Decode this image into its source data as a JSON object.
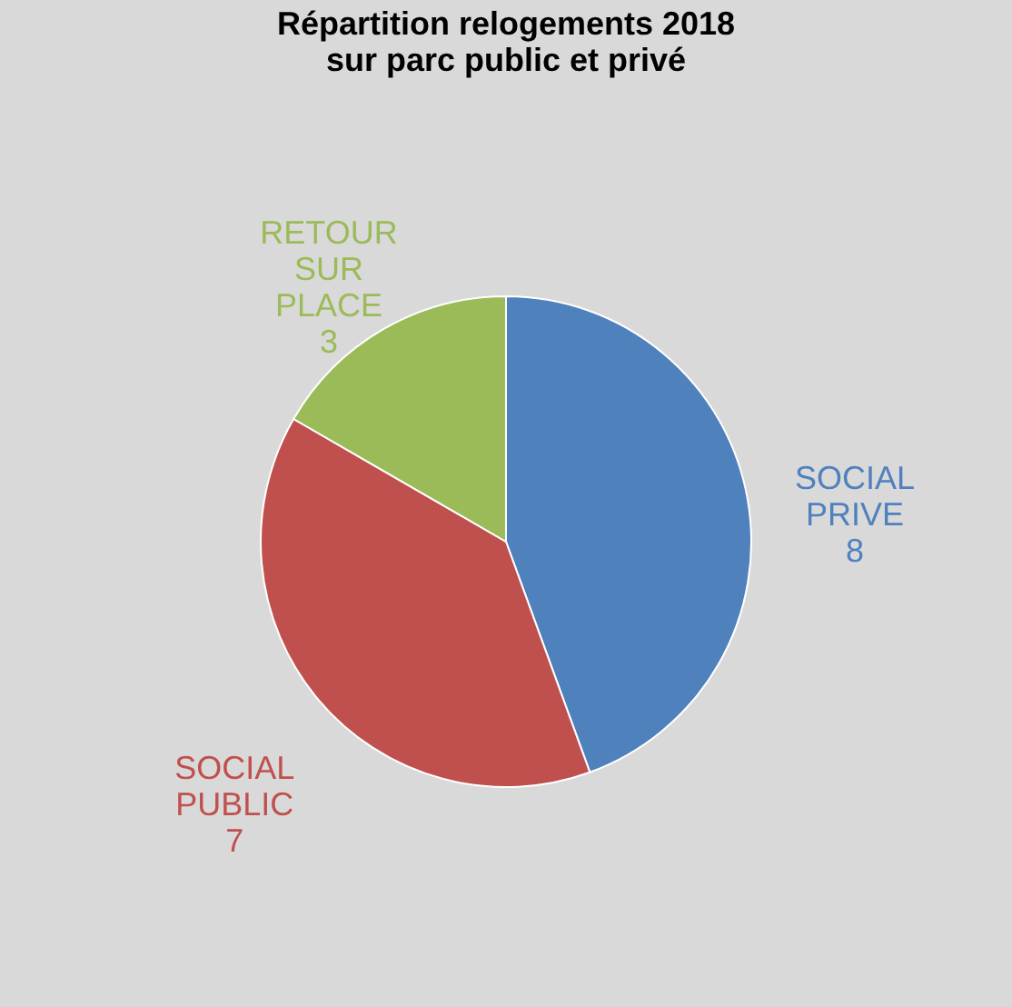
{
  "chart_data": {
    "type": "pie",
    "title": [
      "Répartition relogements 2018",
      "sur parc public et privé"
    ],
    "categories": [
      "SOCIAL PRIVE",
      "SOCIAL PUBLIC",
      "RETOUR SUR PLACE"
    ],
    "values": [
      8,
      7,
      3
    ],
    "colors": [
      "#4f81bd",
      "#c0504d",
      "#9bbb59"
    ],
    "data_labels": true,
    "legend": false
  }
}
